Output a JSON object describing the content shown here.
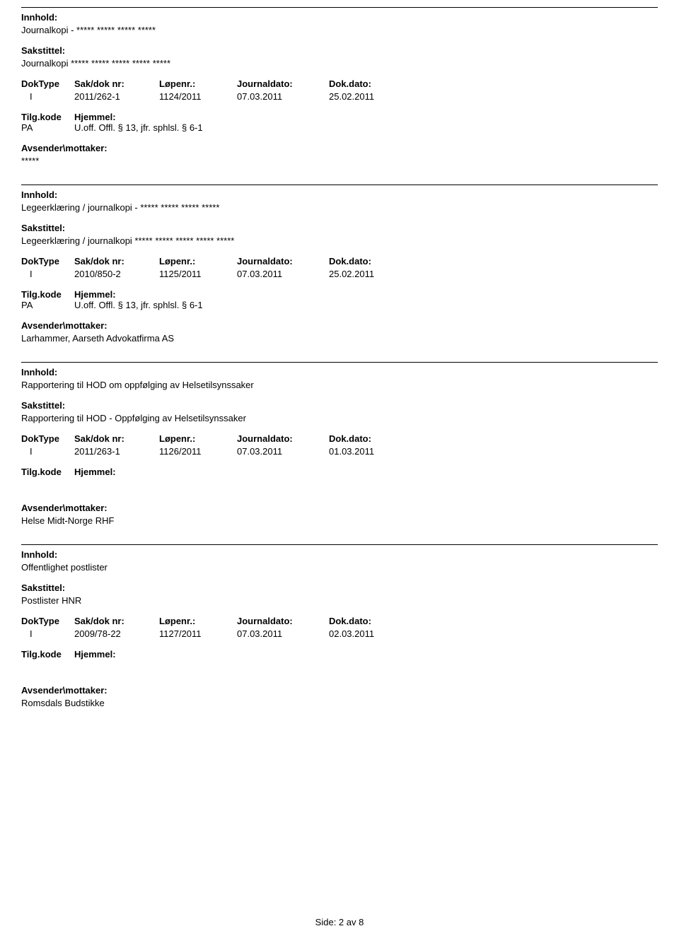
{
  "labels": {
    "innhold": "Innhold:",
    "sakstittel": "Sakstittel:",
    "doktype": "DokType",
    "sakdok": "Sak/dok nr:",
    "lopenr": "Løpenr.:",
    "journaldato": "Journaldato:",
    "dokdato": "Dok.dato:",
    "tilgkode": "Tilg.kode",
    "hjemmel": "Hjemmel:",
    "avsender": "Avsender\\mottaker:"
  },
  "entries": [
    {
      "innhold": "Journalkopi - ***** ***** ***** *****",
      "sakstittel": "Journalkopi ***** ***** ***** ***** *****",
      "doktype": "I",
      "sakdok": "2011/262-1",
      "lopenr": "1124/2011",
      "journaldato": "07.03.2011",
      "dokdato": "25.02.2011",
      "tilgkode": "PA",
      "hjemmel": "U.off. Offl. § 13, jfr. sphlsl. § 6-1",
      "avsender": "*****"
    },
    {
      "innhold": "Legeerklæring / journalkopi - ***** ***** ***** *****",
      "sakstittel": "Legeerklæring / journalkopi ***** ***** ***** ***** *****",
      "doktype": "I",
      "sakdok": "2010/850-2",
      "lopenr": "1125/2011",
      "journaldato": "07.03.2011",
      "dokdato": "25.02.2011",
      "tilgkode": "PA",
      "hjemmel": "U.off. Offl. § 13, jfr. sphlsl. § 6-1",
      "avsender": "Larhammer, Aarseth Advokatfirma AS"
    },
    {
      "innhold": "Rapportering til HOD om oppfølging av Helsetilsynssaker",
      "sakstittel": "Rapportering til HOD - Oppfølging av Helsetilsynssaker",
      "doktype": "I",
      "sakdok": "2011/263-1",
      "lopenr": "1126/2011",
      "journaldato": "07.03.2011",
      "dokdato": "01.03.2011",
      "tilgkode": "",
      "hjemmel": "",
      "avsender": "Helse Midt-Norge RHF"
    },
    {
      "innhold": "Offentlighet postlister",
      "sakstittel": "Postlister HNR",
      "doktype": "I",
      "sakdok": "2009/78-22",
      "lopenr": "1127/2011",
      "journaldato": "07.03.2011",
      "dokdato": "02.03.2011",
      "tilgkode": "",
      "hjemmel": "",
      "avsender": "Romsdals Budstikke"
    }
  ],
  "footer": "Side: 2 av 8"
}
